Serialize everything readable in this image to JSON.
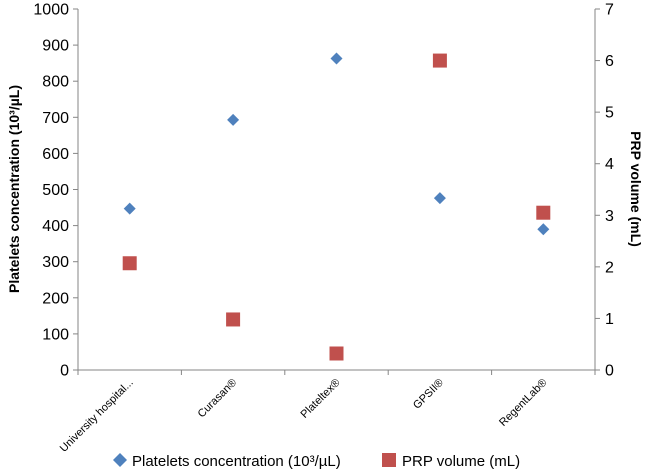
{
  "chart_data": {
    "type": "scatter",
    "categories": [
      "University hospital...",
      "Curasan®",
      "Plateltex®",
      "GPSII®",
      "RegentLab®"
    ],
    "series": [
      {
        "name": "Platelets concentration (10³/µL)",
        "axis": "left",
        "marker": "diamond",
        "color": "#4F81BD",
        "values": [
          447,
          693,
          863,
          476,
          390
        ]
      },
      {
        "name": "PRP volume (mL)",
        "axis": "right",
        "marker": "square",
        "color": "#C0504D",
        "values": [
          2.07,
          0.98,
          0.32,
          6.0,
          3.05
        ]
      }
    ],
    "y_left": {
      "label": "Platelets concentration (10³/µL)",
      "ylim": [
        0,
        1000
      ],
      "ticks": [
        "0",
        "100",
        "200",
        "300",
        "400",
        "500",
        "600",
        "700",
        "800",
        "900",
        "1000"
      ]
    },
    "y_right": {
      "label": "PRP volume (mL)",
      "ylim": [
        0,
        7
      ],
      "ticks": [
        "0",
        "1",
        "2",
        "3",
        "4",
        "5",
        "6",
        "7"
      ]
    },
    "grid": false,
    "legend_position": "bottom"
  }
}
